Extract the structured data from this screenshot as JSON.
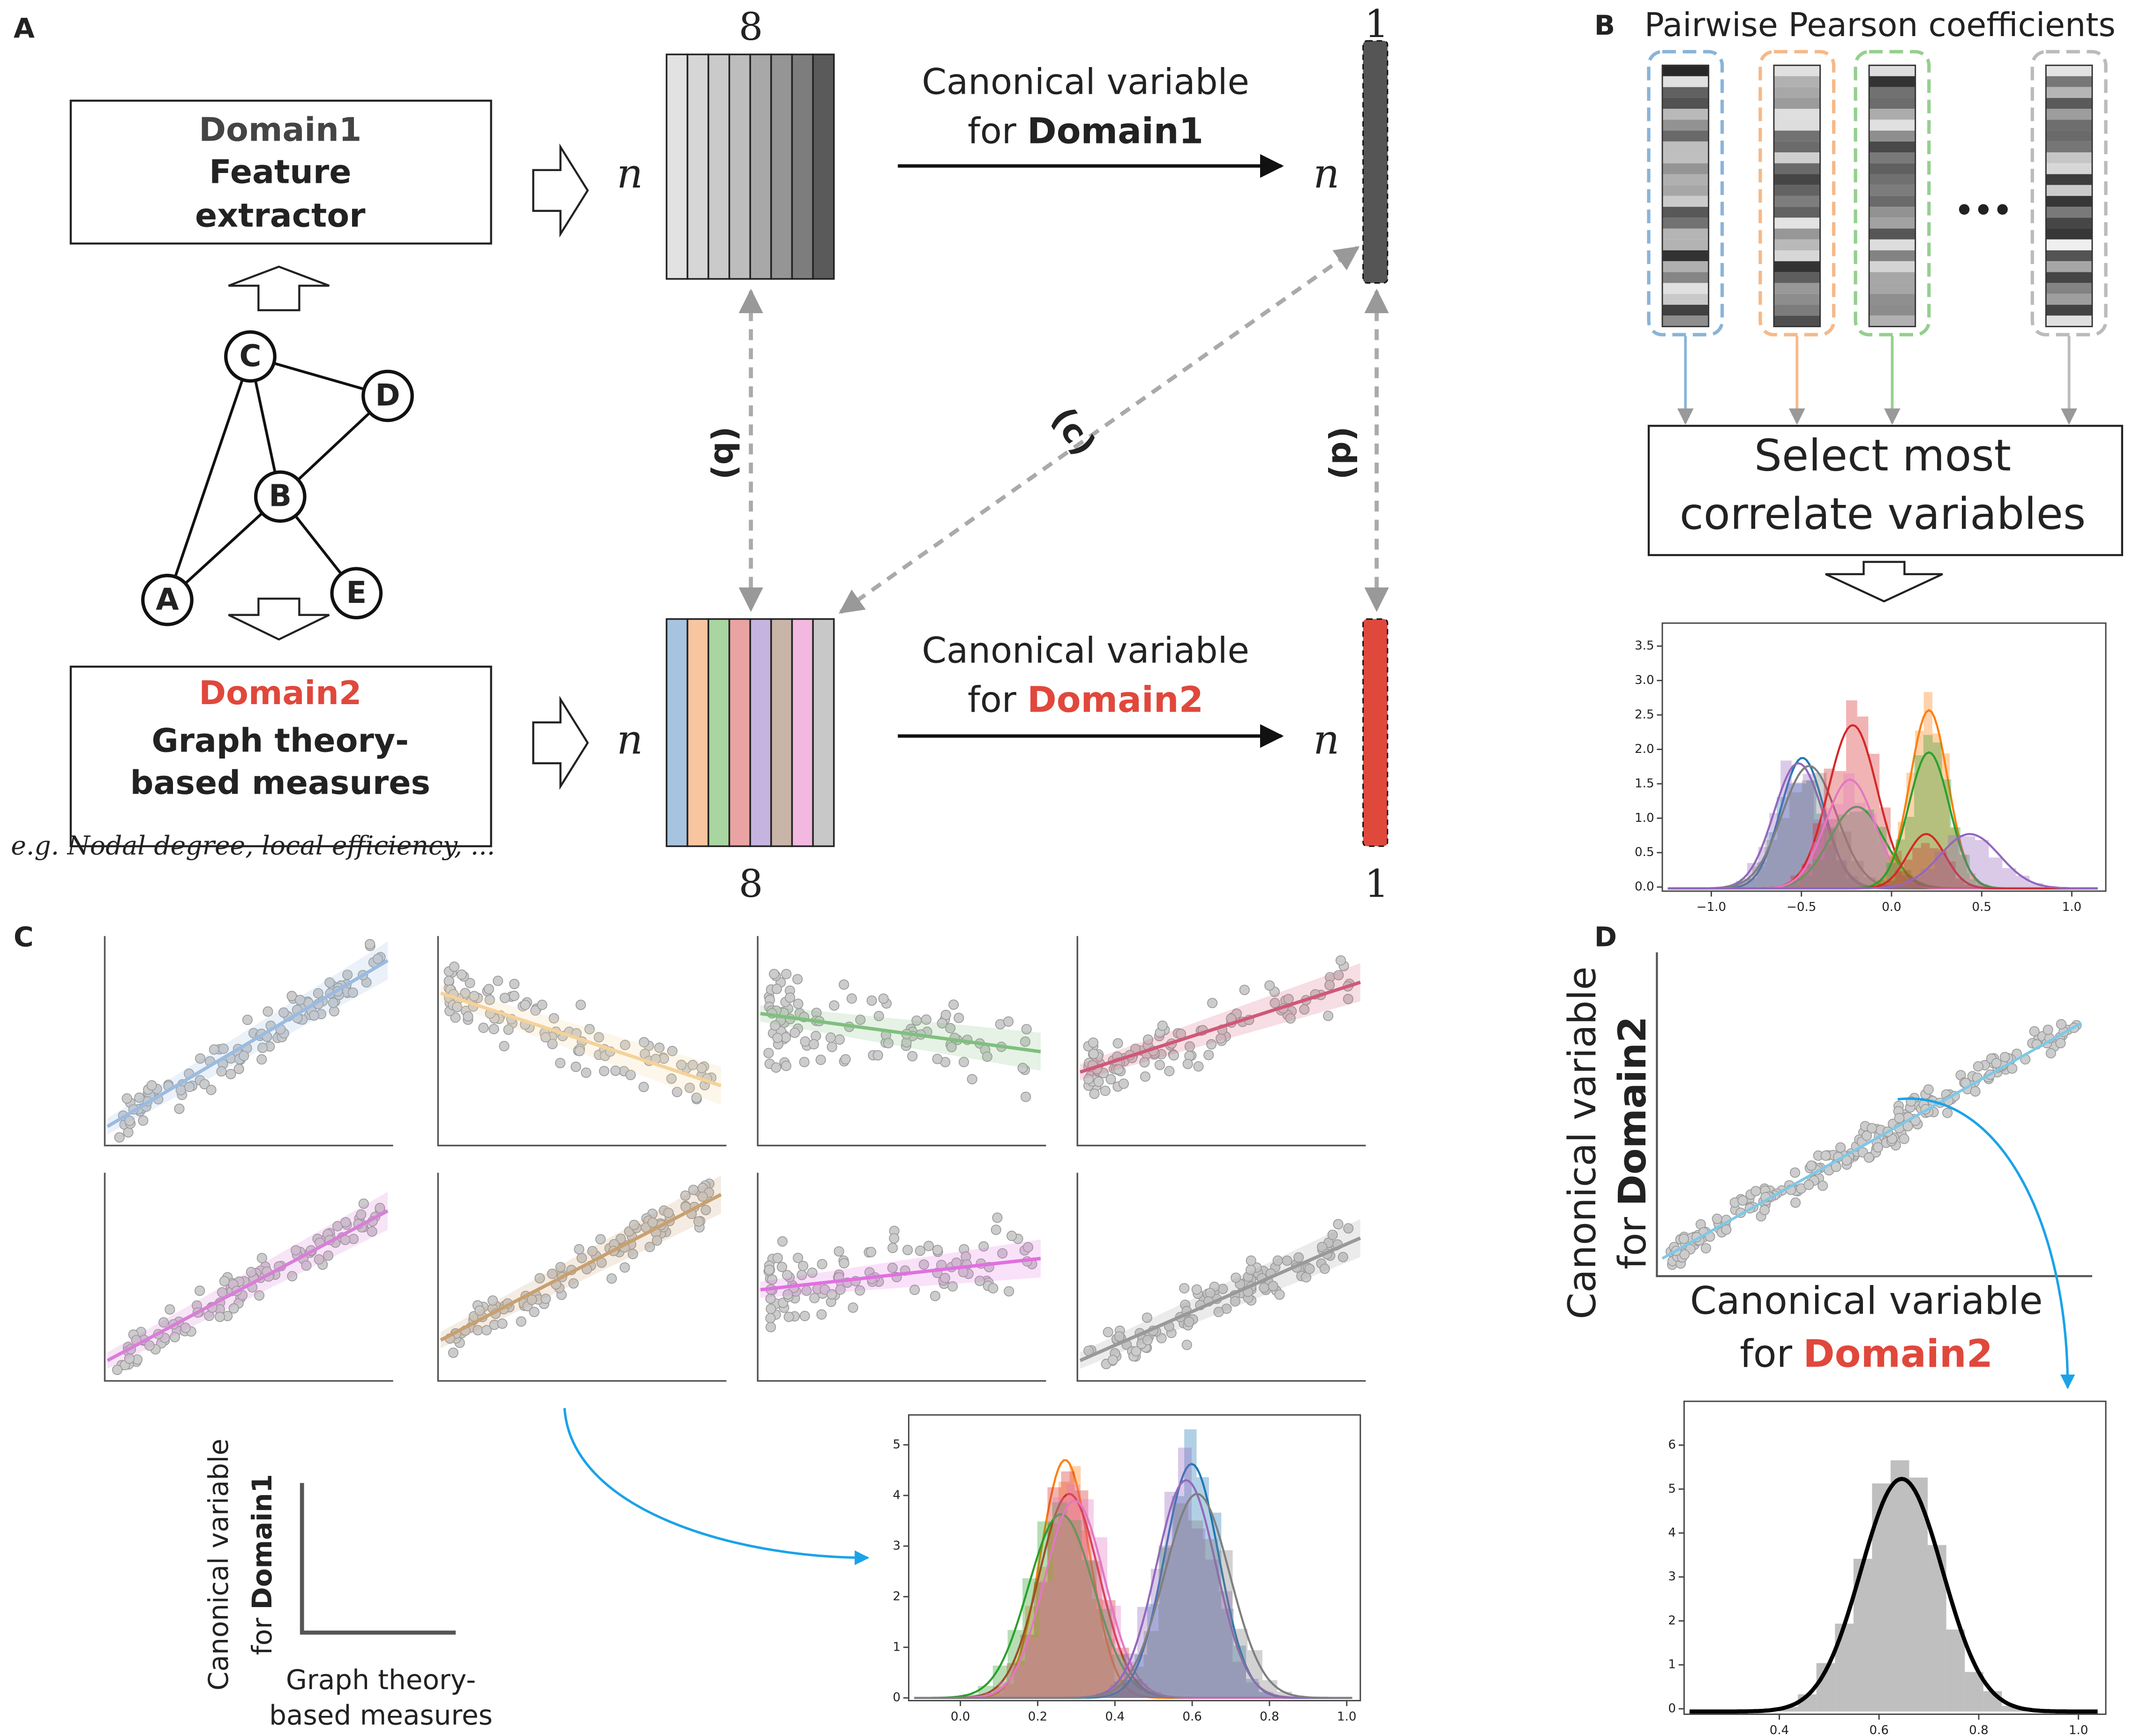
{
  "panel_labels": [
    "A",
    "B",
    "C",
    "D"
  ],
  "panel_a": {
    "domain1_box": {
      "lines": [
        "Domain1",
        "Feature",
        "extractor"
      ]
    },
    "graph_nodes": [
      "C",
      "D",
      "B",
      "A",
      "E"
    ],
    "domain2_box": {
      "lines": [
        "Domain2",
        "Graph theory-",
        "based measures"
      ]
    },
    "example": "e.g. Nodal degree, local efficiency, ...",
    "matrix1": {
      "rows": "n",
      "cols": "8"
    },
    "matrix2": {
      "rows": "n",
      "cols": "8"
    },
    "canonical1": {
      "rows": "n",
      "cols": "1",
      "caption": "Canonical variable",
      "prefix": "for",
      "domain": "Domain1"
    },
    "canonical2": {
      "rows": "n",
      "cols": "1",
      "caption": "Canonical variable",
      "prefix": "for",
      "domain": "Domain2"
    },
    "links": [
      "(b)",
      "(c)",
      "(d)"
    ]
  },
  "panel_b": {
    "title": "Pairwise Pearson coefficients",
    "ellipsis": "•••",
    "select_box": [
      "Select most",
      "correlate variables"
    ],
    "hist_yticks": [
      "0.0",
      "0.5",
      "1.0",
      "1.5",
      "2.0",
      "2.5",
      "3.0",
      "3.5"
    ],
    "hist_xticks": [
      "−1.0",
      "−0.5",
      "0.0",
      "0.5",
      "1.0"
    ]
  },
  "panel_c": {
    "y_label": [
      "Canonical variable",
      "for",
      "Domain1"
    ],
    "x_label": [
      "Graph theory-",
      "based measures"
    ],
    "hist_yticks": [
      "0",
      "1",
      "2",
      "3",
      "4",
      "5"
    ],
    "hist_xticks": [
      "0.0",
      "0.2",
      "0.4",
      "0.6",
      "0.8",
      "1.0"
    ]
  },
  "panel_d": {
    "y_label": [
      "Canonical variable",
      "for",
      "Domain2"
    ],
    "x_label": [
      "Canonical variable",
      "for",
      "Domain2"
    ],
    "hist_yticks": [
      "0",
      "1",
      "2",
      "3",
      "4",
      "5",
      "6"
    ],
    "hist_xticks": [
      "0.4",
      "0.6",
      "0.8",
      "1.0"
    ]
  }
}
